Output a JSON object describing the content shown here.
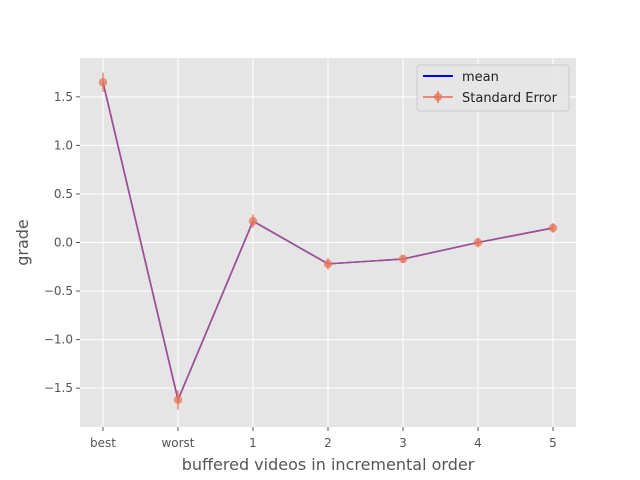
{
  "chart_data": {
    "type": "line",
    "title": "",
    "xlabel": "buffered videos in incremental order",
    "ylabel": "grade",
    "categories": [
      "best",
      "worst",
      "1",
      "2",
      "3",
      "4",
      "5"
    ],
    "ylim": [
      -1.9,
      1.9
    ],
    "yticks": [
      -1.5,
      -1.0,
      -0.5,
      0.0,
      0.5,
      1.0,
      1.5
    ],
    "ytick_labels": [
      "−1.5",
      "−1.0",
      "−0.5",
      "0.0",
      "0.5",
      "1.0",
      "1.5"
    ],
    "grid": true,
    "legend_position": "top-right",
    "series": [
      {
        "name": "mean",
        "kind": "line",
        "color": "#0000ff",
        "values": [
          1.65,
          -1.62,
          0.22,
          -0.22,
          -0.17,
          0.0,
          0.15
        ]
      },
      {
        "name": "Standard Error",
        "kind": "errorbar",
        "color": "#e8735a",
        "values": [
          1.65,
          -1.62,
          0.22,
          -0.22,
          -0.17,
          0.0,
          0.15
        ],
        "errors": [
          0.1,
          0.1,
          0.07,
          0.06,
          0.04,
          0.05,
          0.05
        ]
      }
    ],
    "background_color": "#e5e5e5",
    "grid_color": "#ffffff"
  }
}
